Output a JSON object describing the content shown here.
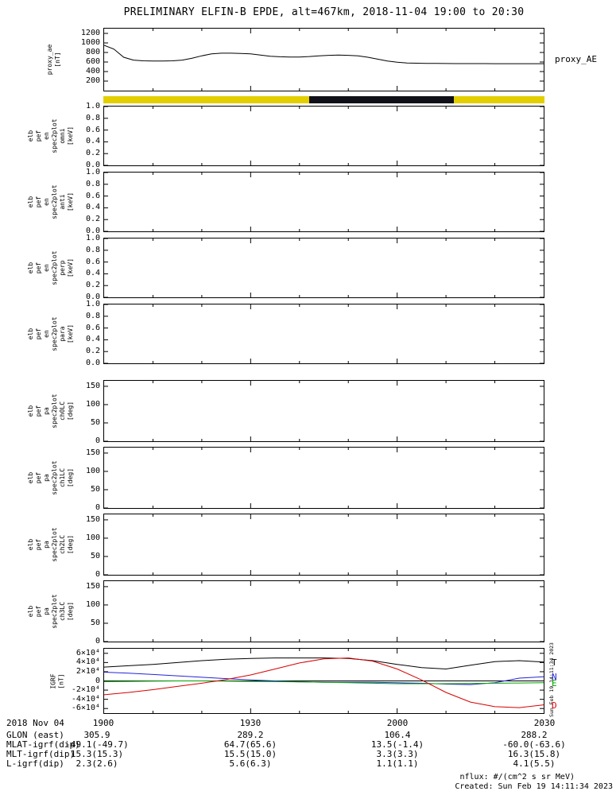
{
  "title": "PRELIMINARY ELFIN-B EPDE, alt=467km, 2018-11-04 19:00 to 20:30",
  "right_labels": {
    "proxy_ae": "proxy_AE"
  },
  "x_axis": {
    "date_label": "2018 Nov 04",
    "tick_labels": [
      "1900",
      "1930",
      "2000",
      "2030"
    ],
    "tick_minutes": [
      0,
      30,
      60,
      90
    ]
  },
  "bottom": {
    "rows": [
      {
        "label": "GLON (east)",
        "values": [
          "305.9",
          "289.2",
          "106.4",
          "288.2"
        ]
      },
      {
        "label": "MLAT-igrf(dip)",
        "values": [
          "-49.1(-49.7)",
          "64.7(65.6)",
          "13.5(-1.4)",
          "-60.0(-63.6)"
        ]
      },
      {
        "label": "MLT-igrf(dip)",
        "values": [
          "15.3(15.3)",
          "15.5(15.0)",
          "3.3(3.3)",
          "16.3(15.8)"
        ]
      },
      {
        "label": "L-igrf(dip)",
        "values": [
          "2.3(2.6)",
          "5.6(6.3)",
          "1.1(1.1)",
          "4.1(5.5)"
        ]
      }
    ],
    "footnote_units": "nflux: #/(cm^2 s sr MeV)",
    "created": "Created: Sun Feb 19 14:11:34 2023",
    "side_timestamp": "Sun Feb 19 14:11:34 2023"
  },
  "chart_data": [
    {
      "id": "proxy_ae",
      "type": "line",
      "label_lines": [
        "proxy_ae",
        "[nT]"
      ],
      "right_label": "proxy_AE",
      "ylim": [
        0,
        1300
      ],
      "yticks": [
        200,
        400,
        600,
        800,
        1000,
        1200
      ],
      "ytick_labels": [
        "200",
        "400",
        "600",
        "800",
        "1000",
        "1200"
      ],
      "color": "#000000",
      "x_minutes_after_1900": [
        0,
        2,
        4,
        6,
        8,
        10,
        12,
        14,
        16,
        18,
        20,
        22,
        24,
        26,
        28,
        30,
        32,
        34,
        36,
        38,
        40,
        42,
        44,
        46,
        48,
        50,
        52,
        54,
        56,
        58,
        60,
        62,
        64,
        66,
        68,
        70,
        72,
        74,
        76,
        78,
        80,
        82,
        84,
        86,
        88,
        90
      ],
      "values_nT": [
        950,
        870,
        700,
        640,
        625,
        620,
        620,
        625,
        640,
        680,
        730,
        770,
        785,
        785,
        780,
        770,
        745,
        720,
        710,
        705,
        705,
        715,
        730,
        740,
        745,
        740,
        730,
        700,
        660,
        620,
        595,
        580,
        575,
        570,
        570,
        568,
        567,
        567,
        566,
        566,
        565,
        565,
        565,
        565,
        565,
        565
      ]
    },
    {
      "id": "survey_mode_bar",
      "type": "bar-segments",
      "segments": [
        {
          "start_min": 0,
          "end_min": 42,
          "color": "#e3cf00"
        },
        {
          "start_min": 42,
          "end_min": 71.5,
          "color": "#101018"
        },
        {
          "start_min": 71.5,
          "end_min": 90,
          "color": "#e3cf00"
        }
      ]
    },
    {
      "id": "energy_spectrograms",
      "type": "heatmap",
      "empty": true,
      "ylim": [
        0,
        1
      ],
      "yticks": [
        0,
        0.2,
        0.4,
        0.6,
        0.8,
        1
      ],
      "ytick_labels": [
        "0.0",
        "0.2",
        "0.4",
        "0.6",
        "0.8",
        "1.0"
      ],
      "panels": [
        {
          "label_lines": [
            "elb",
            "pef",
            "en",
            "spec2plot",
            "omni",
            "[keV]"
          ]
        },
        {
          "label_lines": [
            "elb",
            "pef",
            "en",
            "spec2plot",
            "anti",
            "[keV]"
          ]
        },
        {
          "label_lines": [
            "elb",
            "pef",
            "en",
            "spec2plot",
            "perp",
            "[keV]"
          ]
        },
        {
          "label_lines": [
            "elb",
            "pef",
            "en",
            "spec2plot",
            "para",
            "[keV]"
          ]
        }
      ]
    },
    {
      "id": "pitch_angle_spectrograms",
      "type": "heatmap",
      "empty": true,
      "ylim": [
        0,
        165
      ],
      "yticks": [
        0,
        50,
        100,
        150
      ],
      "ytick_labels": [
        "0",
        "50",
        "100",
        "150"
      ],
      "panels": [
        {
          "label_lines": [
            "elb",
            "pef",
            "pa",
            "spec2plot",
            "ch0LC",
            "[deg]"
          ]
        },
        {
          "label_lines": [
            "elb",
            "pef",
            "pa",
            "spec2plot",
            "ch1LC",
            "[deg]"
          ]
        },
        {
          "label_lines": [
            "elb",
            "pef",
            "pa",
            "spec2plot",
            "ch2LC",
            "[deg]"
          ]
        },
        {
          "label_lines": [
            "elb",
            "pef",
            "pa",
            "spec2plot",
            "ch3LC",
            "[deg]"
          ]
        }
      ]
    },
    {
      "id": "igrf",
      "type": "line",
      "label_lines": [
        "IGRF",
        "[nT]"
      ],
      "ylim": [
        -70000,
        70000
      ],
      "yticks": [
        -60000,
        -40000,
        -20000,
        0,
        20000,
        40000,
        60000
      ],
      "ytick_labels": [
        "-6×10⁴",
        "-4×10⁴",
        "-2×10⁴",
        "0",
        "2×10⁴",
        "4×10⁴",
        "6×10⁴"
      ],
      "x_minutes_after_1900": [
        0,
        5,
        10,
        15,
        20,
        25,
        30,
        35,
        40,
        45,
        50,
        55,
        60,
        65,
        70,
        75,
        80,
        85,
        90
      ],
      "series": [
        {
          "name": "T",
          "color": "#000000",
          "values_nT": [
            30000,
            33000,
            36000,
            40000,
            44000,
            47000,
            49000,
            50000,
            50000,
            50000,
            49000,
            44000,
            36000,
            29000,
            26000,
            34000,
            42000,
            44000,
            41000
          ]
        },
        {
          "name": "N",
          "color": "#2424d8",
          "values_nT": [
            19000,
            17000,
            14000,
            11000,
            8000,
            5000,
            2000,
            0,
            -2000,
            -3000,
            -3000,
            -3000,
            -4000,
            -5000,
            -7000,
            -8000,
            -4000,
            6000,
            9000
          ]
        },
        {
          "name": "E",
          "color": "#00a000",
          "values_nT": [
            -1500,
            -1000,
            -500,
            0,
            0,
            -500,
            -1000,
            -1500,
            -2000,
            -3000,
            -4000,
            -5000,
            -6000,
            -6000,
            -6000,
            -5500,
            -5000,
            -4500,
            -4000
          ]
        },
        {
          "name": "D",
          "color": "#d80000",
          "values_nT": [
            -30000,
            -25000,
            -19000,
            -12000,
            -5000,
            3000,
            13000,
            26000,
            39000,
            48000,
            50000,
            43000,
            26000,
            2000,
            -25000,
            -46000,
            -56000,
            -58000,
            -52000
          ]
        }
      ]
    }
  ]
}
